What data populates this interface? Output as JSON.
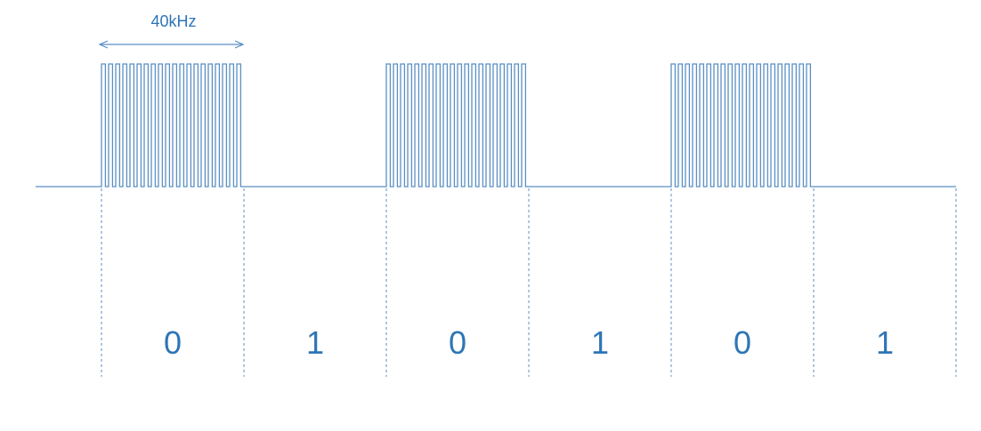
{
  "colors": {
    "signal": "#5b8fc4",
    "text": "#2e75b6",
    "background": "#ffffff"
  },
  "annotation": {
    "label": "40kHz",
    "arrow": "double-headed"
  },
  "bits": [
    "0",
    "1",
    "0",
    "1",
    "0",
    "1"
  ],
  "signal": {
    "burst_on": [
      true,
      false,
      true,
      false,
      true,
      false
    ],
    "pulses_per_burst": 20
  }
}
